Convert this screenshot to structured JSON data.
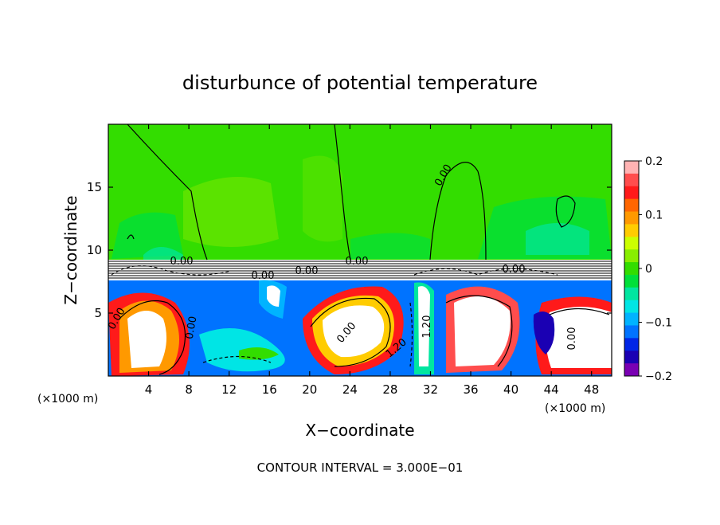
{
  "chart_data": {
    "type": "heatmap",
    "title": "disturbunce of potential temperature",
    "xlabel": "X−coordinate",
    "ylabel": "Z−coordinate",
    "x_unit_left": "(×1000 m)",
    "x_unit_right": "(×1000 m)",
    "footnote": "CONTOUR INTERVAL = 3.000E−01",
    "xlim": [
      0,
      50
    ],
    "ylim": [
      0,
      20
    ],
    "x_ticks": [
      4,
      8,
      12,
      16,
      20,
      24,
      28,
      32,
      36,
      40,
      44,
      48
    ],
    "x_tick_labels": [
      "4",
      "8",
      "12",
      "16",
      "20",
      "24",
      "28",
      "32",
      "36",
      "40",
      "44",
      "48"
    ],
    "y_ticks": [
      5,
      10,
      15
    ],
    "y_tick_labels": [
      "5",
      "10",
      "15"
    ],
    "colorbar": {
      "range": [
        -0.2,
        0.2
      ],
      "ticks": [
        0.2,
        0.1,
        0,
        -0.1,
        -0.2
      ],
      "tick_labels": [
        "0.2",
        "0.1",
        "0",
        "−0.1",
        "−0.2"
      ],
      "colors": [
        "#ffb3b3",
        "#ff4d4d",
        "#ff1a1a",
        "#ff6600",
        "#ff9900",
        "#ffcc00",
        "#ccff00",
        "#88ee00",
        "#33dd00",
        "#00e03a",
        "#00e6a0",
        "#00e5e5",
        "#00b3ff",
        "#0073ff",
        "#0026e6",
        "#1a00b3",
        "#7a00b3"
      ]
    },
    "contour_labels": [
      "0.00",
      "0.00",
      "0.00",
      "0.00",
      "0.00",
      "0.00",
      "0.00",
      "0.00",
      "1.20",
      "1.20",
      "0.00",
      "0.00"
    ],
    "grid": false,
    "legend": "right colorbar"
  }
}
